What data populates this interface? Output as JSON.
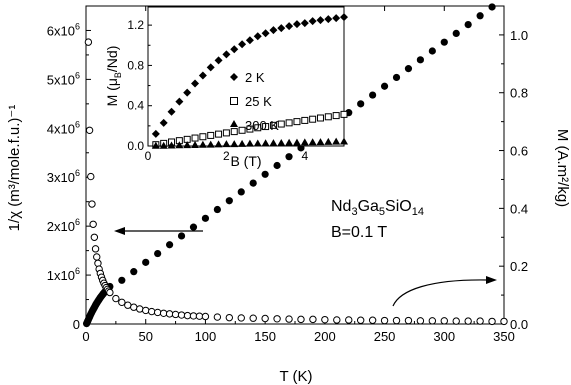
{
  "chart_data": [
    {
      "type": "scatter",
      "xlabel": "T (K)",
      "ylabel": "1/χ (m³/mole.f.u.)⁻¹",
      "ylabel_right": "M (A.m²/kg)",
      "xlim": [
        0,
        350
      ],
      "ylim": [
        0,
        6500000
      ],
      "ylim_right": [
        0,
        1.1
      ],
      "x_ticks": [
        0,
        50,
        100,
        150,
        200,
        250,
        300,
        350
      ],
      "x_tick_labels": [
        "0",
        "50",
        "100",
        "150",
        "200",
        "250",
        "300",
        "350"
      ],
      "y_ticks": [
        0,
        1000000,
        2000000,
        3000000,
        4000000,
        5000000,
        6000000
      ],
      "y_tick_labels": [
        "0",
        "1x10",
        "2x10",
        "3x10",
        "4x10",
        "5x10",
        "6x10"
      ],
      "y_tick_exponent": "6",
      "y_right_ticks": [
        0,
        0.2,
        0.4,
        0.6,
        0.8,
        1.0
      ],
      "y_right_tick_labels": [
        "0.0",
        "0.2",
        "0.4",
        "0.6",
        "0.8",
        "1.0"
      ],
      "annotation": {
        "formula_parts": [
          "Nd",
          "3",
          "Ga",
          "5",
          "SiO",
          "14"
        ],
        "field": "B=0.1 T"
      },
      "series": [
        {
          "axis": "left",
          "marker": "filled-circle",
          "x": [
            0.5,
            1,
            1.5,
            2,
            2.5,
            3,
            3.5,
            4,
            4.5,
            5,
            5.5,
            6,
            6.5,
            7,
            7.5,
            8,
            8.5,
            9,
            9.5,
            10,
            10.5,
            11,
            11.5,
            12,
            12.5,
            13,
            13.5,
            14,
            14.5,
            15,
            15.5,
            16,
            16.5,
            17,
            17.5,
            18,
            18.5,
            19,
            19.5,
            20,
            30,
            40,
            50,
            60,
            70,
            80,
            90,
            100,
            110,
            120,
            130,
            140,
            150,
            160,
            170,
            180,
            190,
            200,
            210,
            220,
            230,
            240,
            250,
            260,
            270,
            280,
            290,
            300,
            310,
            320,
            330,
            340,
            350
          ],
          "y": [
            8000,
            35000,
            62000,
            90000,
            118000,
            145000,
            172000,
            200000,
            225000,
            250000,
            272000,
            295000,
            318000,
            340000,
            362000,
            384000,
            405000,
            425000,
            445000,
            465000,
            484000,
            503000,
            522000,
            540000,
            556000,
            572000,
            588000,
            604000,
            619000,
            634000,
            648000,
            662000,
            676000,
            690000,
            703000,
            716000,
            729000,
            742000,
            754000,
            766000,
            893000,
            1070000,
            1260000,
            1440000,
            1620000,
            1800000,
            1980000,
            2160000,
            2340000,
            2520000,
            2700000,
            2880000,
            3060000,
            3240000,
            3420000,
            3600000,
            3780000,
            3960000,
            4140000,
            4320000,
            4500000,
            4680000,
            4860000,
            5040000,
            5220000,
            5400000,
            5580000,
            5760000,
            5940000,
            6120000,
            6300000,
            6480000,
            6660000
          ]
        },
        {
          "axis": "right",
          "marker": "open-circle",
          "x": [
            2,
            3,
            4,
            5,
            6,
            7,
            8,
            9,
            10,
            11,
            12,
            13,
            14,
            15,
            16,
            17,
            18,
            19,
            20,
            25,
            30,
            35,
            40,
            45,
            50,
            55,
            60,
            65,
            70,
            75,
            80,
            85,
            90,
            95,
            100,
            110,
            120,
            130,
            140,
            150,
            160,
            170,
            180,
            190,
            200,
            210,
            220,
            230,
            240,
            250,
            260,
            270,
            280,
            290,
            300,
            310,
            320,
            330,
            340,
            350
          ],
          "y": [
            0.975,
            0.67,
            0.51,
            0.415,
            0.345,
            0.3,
            0.26,
            0.232,
            0.21,
            0.19,
            0.175,
            0.162,
            0.151,
            0.141,
            0.133,
            0.126,
            0.12,
            0.114,
            0.109,
            0.088,
            0.075,
            0.065,
            0.058,
            0.052,
            0.047,
            0.043,
            0.04,
            0.037,
            0.035,
            0.033,
            0.031,
            0.029,
            0.028,
            0.027,
            0.026,
            0.024,
            0.022,
            0.021,
            0.02,
            0.019,
            0.018,
            0.017,
            0.016,
            0.016,
            0.015,
            0.014,
            0.014,
            0.013,
            0.013,
            0.012,
            0.012,
            0.012,
            0.011,
            0.011,
            0.011,
            0.01,
            0.01,
            0.01,
            0.009,
            0.009
          ]
        }
      ]
    },
    {
      "type": "scatter",
      "xlabel": "B (T)",
      "ylabel": "M (μ",
      "ylabel_sub": "B",
      "ylabel_tail": "/Nd)",
      "xlim": [
        0,
        5
      ],
      "ylim": [
        0,
        1.38
      ],
      "x_ticks": [
        0,
        2,
        4
      ],
      "x_tick_labels": [
        "0",
        "2",
        "4"
      ],
      "y_ticks": [
        0.0,
        0.4,
        0.8,
        1.2
      ],
      "y_tick_labels": [
        "0.0",
        "0.4",
        "0.8",
        "1.2"
      ],
      "legend_position": "right",
      "series": [
        {
          "name": "2 K",
          "marker": "filled-diamond",
          "x": [
            0.2,
            0.4,
            0.6,
            0.8,
            1.0,
            1.2,
            1.4,
            1.6,
            1.8,
            2.0,
            2.2,
            2.4,
            2.6,
            2.8,
            3.0,
            3.2,
            3.4,
            3.6,
            3.8,
            4.0,
            4.2,
            4.4,
            4.6,
            4.8,
            5.0
          ],
          "y": [
            0.12,
            0.23,
            0.34,
            0.44,
            0.53,
            0.62,
            0.7,
            0.78,
            0.85,
            0.91,
            0.96,
            1.01,
            1.05,
            1.09,
            1.12,
            1.15,
            1.17,
            1.19,
            1.21,
            1.22,
            1.24,
            1.25,
            1.26,
            1.27,
            1.28
          ]
        },
        {
          "name": "25 K",
          "marker": "open-square",
          "x": [
            0.2,
            0.4,
            0.6,
            0.8,
            1.0,
            1.2,
            1.4,
            1.6,
            1.8,
            2.0,
            2.2,
            2.4,
            2.6,
            2.8,
            3.0,
            3.2,
            3.4,
            3.6,
            3.8,
            4.0,
            4.2,
            4.4,
            4.6,
            4.8,
            5.0
          ],
          "y": [
            0.013,
            0.026,
            0.04,
            0.053,
            0.066,
            0.079,
            0.092,
            0.105,
            0.118,
            0.13,
            0.143,
            0.156,
            0.168,
            0.181,
            0.193,
            0.205,
            0.218,
            0.23,
            0.242,
            0.254,
            0.266,
            0.278,
            0.29,
            0.302,
            0.314
          ]
        },
        {
          "name": "300 K",
          "marker": "filled-triangle",
          "x": [
            0.2,
            0.4,
            0.6,
            0.8,
            1.0,
            1.2,
            1.4,
            1.6,
            1.8,
            2.0,
            2.2,
            2.4,
            2.6,
            2.8,
            3.0,
            3.2,
            3.4,
            3.6,
            3.8,
            4.0,
            4.2,
            4.4,
            4.6,
            4.8,
            5.0
          ],
          "y": [
            0.002,
            0.003,
            0.005,
            0.007,
            0.009,
            0.01,
            0.012,
            0.014,
            0.016,
            0.018,
            0.019,
            0.021,
            0.023,
            0.025,
            0.027,
            0.028,
            0.03,
            0.032,
            0.034,
            0.036,
            0.037,
            0.039,
            0.041,
            0.043,
            0.045
          ]
        }
      ]
    }
  ]
}
